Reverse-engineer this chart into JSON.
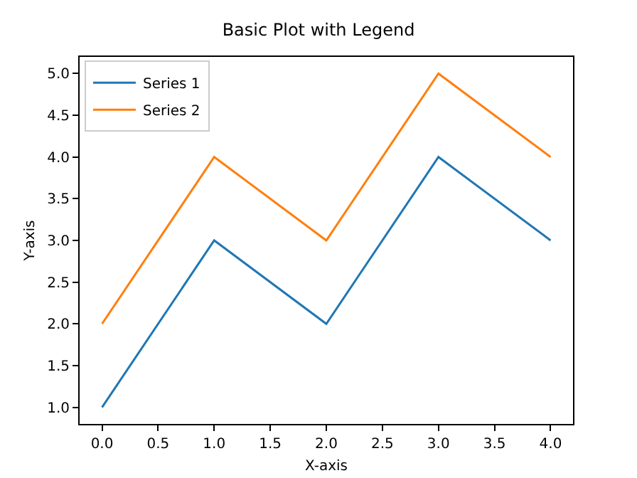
{
  "chart_data": {
    "type": "line",
    "title": "Basic Plot with Legend",
    "xlabel": "X-axis",
    "ylabel": "Y-axis",
    "x": [
      0,
      1,
      2,
      3,
      4
    ],
    "series": [
      {
        "name": "Series 1",
        "color": "#1f77b4",
        "values": [
          1,
          3,
          2,
          4,
          3
        ]
      },
      {
        "name": "Series 2",
        "color": "#ff7f0e",
        "values": [
          2,
          4,
          3,
          5,
          4
        ]
      }
    ],
    "xlim": [
      -0.2,
      4.2
    ],
    "ylim": [
      0.8,
      5.2
    ],
    "xticks": [
      {
        "value": 0,
        "label": "0.0"
      },
      {
        "value": 0.5,
        "label": "0.5"
      },
      {
        "value": 1,
        "label": "1.0"
      },
      {
        "value": 1.5,
        "label": "1.5"
      },
      {
        "value": 2,
        "label": "2.0"
      },
      {
        "value": 2.5,
        "label": "2.5"
      },
      {
        "value": 3,
        "label": "3.0"
      },
      {
        "value": 3.5,
        "label": "3.5"
      },
      {
        "value": 4,
        "label": "4.0"
      }
    ],
    "yticks": [
      {
        "value": 1,
        "label": "1.0"
      },
      {
        "value": 1.5,
        "label": "1.5"
      },
      {
        "value": 2,
        "label": "2.0"
      },
      {
        "value": 2.5,
        "label": "2.5"
      },
      {
        "value": 3,
        "label": "3.0"
      },
      {
        "value": 3.5,
        "label": "3.5"
      },
      {
        "value": 4,
        "label": "4.0"
      },
      {
        "value": 4.5,
        "label": "4.5"
      },
      {
        "value": 5,
        "label": "5.0"
      }
    ],
    "legend": "top left",
    "grid": false,
    "marker": "none",
    "line_style": "solid"
  }
}
